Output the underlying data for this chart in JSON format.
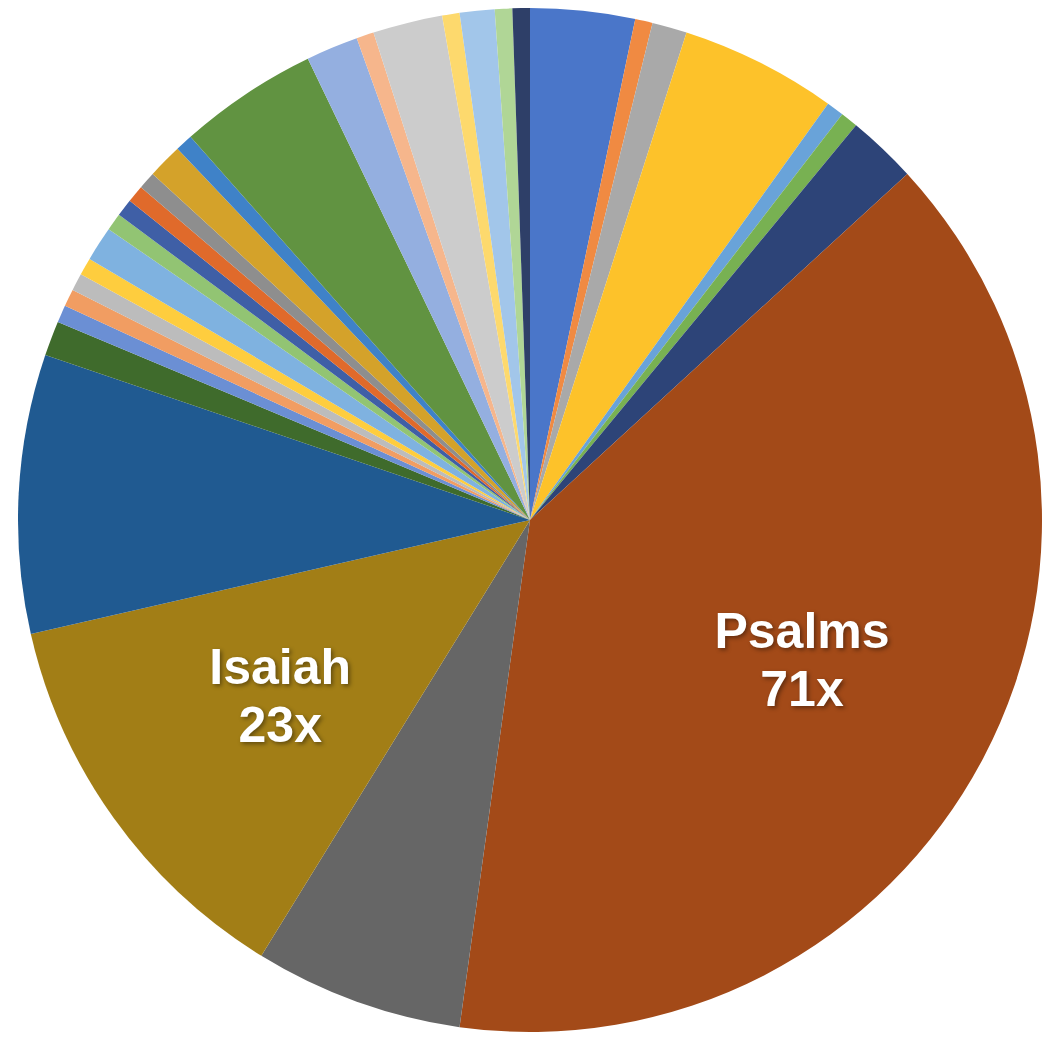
{
  "chart_data": {
    "type": "pie",
    "categories": [
      null,
      null,
      null,
      null,
      null,
      null,
      null,
      "Psalms",
      null,
      "Isaiah",
      null,
      null,
      null,
      null,
      null,
      null,
      null,
      null,
      null,
      null,
      null,
      null,
      null,
      null,
      null,
      null,
      null,
      null,
      null,
      null,
      null
    ],
    "values": [
      6,
      1,
      2,
      9,
      1,
      1,
      4,
      71,
      12,
      23,
      16,
      2,
      1,
      1,
      1,
      1,
      2,
      1,
      1,
      1,
      1,
      2,
      1,
      8,
      3,
      1,
      4,
      1,
      2,
      1,
      1
    ],
    "value_labels": [
      null,
      null,
      null,
      null,
      null,
      null,
      null,
      "71x",
      null,
      "23x",
      null,
      null,
      null,
      null,
      null,
      null,
      null,
      null,
      null,
      null,
      null,
      null,
      null,
      null,
      null,
      null,
      null,
      null,
      null,
      null,
      null
    ],
    "colors": [
      "#4a76c9",
      "#f08a42",
      "#a9a9a9",
      "#fdc22a",
      "#69a3d9",
      "#78b152",
      "#2d4478",
      "#a34a18",
      "#666666",
      "#a27e16",
      "#205a91",
      "#3f6b2c",
      "#6b8fd4",
      "#f19d62",
      "#bcbcbc",
      "#fecd3e",
      "#7fb2e0",
      "#92c473",
      "#3f5fa6",
      "#e06a2b",
      "#8e8e8e",
      "#d4a22a",
      "#3f82c8",
      "#619341",
      "#94afe0",
      "#f6b68c",
      "#cccccc",
      "#fdd96d",
      "#a2c6ea",
      "#b0d696",
      "#2e3f68"
    ],
    "legend": false
  }
}
